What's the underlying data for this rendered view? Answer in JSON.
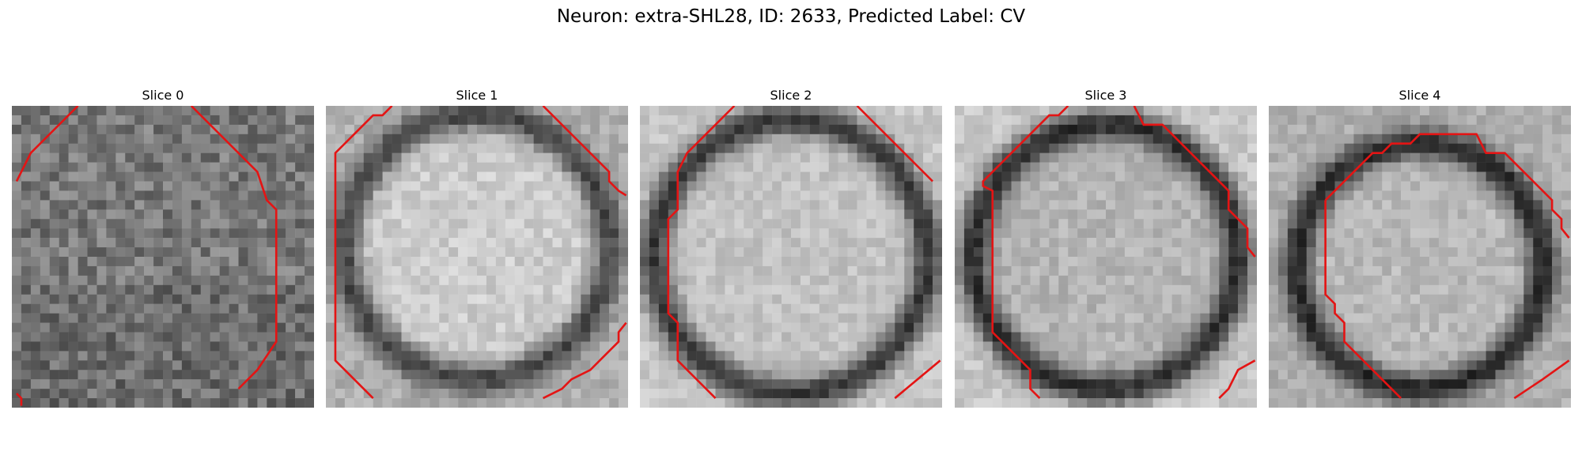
{
  "figure": {
    "title": "Neuron: extra-SHL28, ID: 2633, Predicted Label: CV",
    "panels": [
      {
        "title": "Slice 0"
      },
      {
        "title": "Slice 1"
      },
      {
        "title": "Slice 2"
      },
      {
        "title": "Slice 3"
      },
      {
        "title": "Slice 4"
      }
    ],
    "contour_color": "#e41414"
  }
}
